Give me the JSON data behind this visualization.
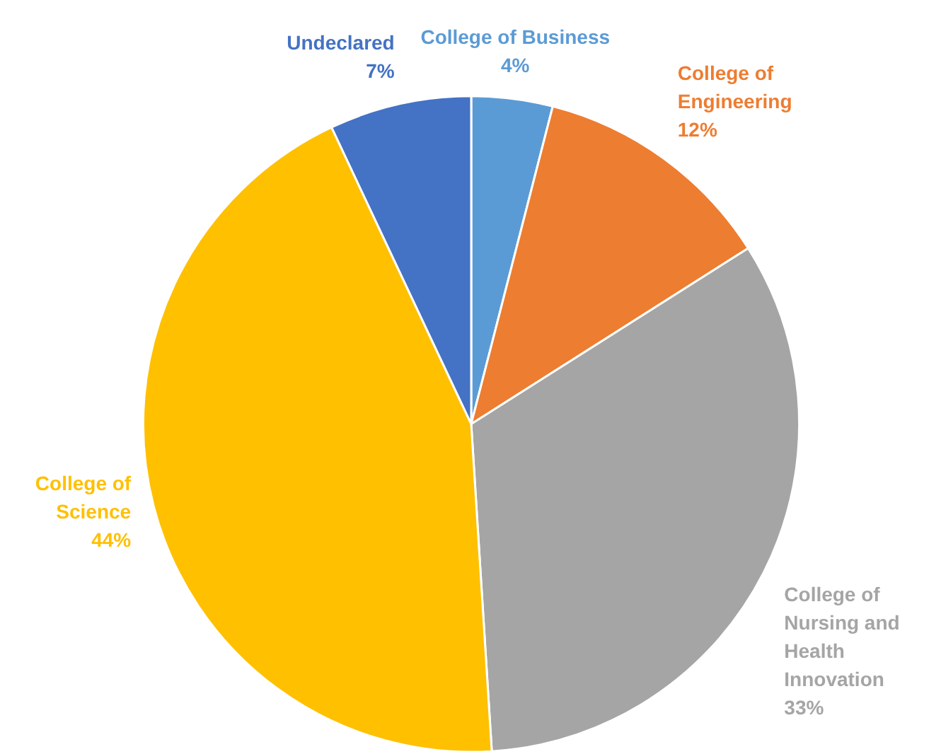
{
  "chart_data": {
    "type": "pie",
    "categories": [
      "College of Business",
      "College of Engineering",
      "College of Nursing and Health Innovation",
      "College of Science",
      "Undeclared"
    ],
    "values": [
      4,
      12,
      33,
      44,
      7
    ],
    "value_labels": [
      "4%",
      "12%",
      "33%",
      "44%",
      "7%"
    ],
    "colors": [
      "#5b9bd5",
      "#ed7d31",
      "#a5a5a5",
      "#ffc000",
      "#4472c4"
    ],
    "legend": false
  }
}
